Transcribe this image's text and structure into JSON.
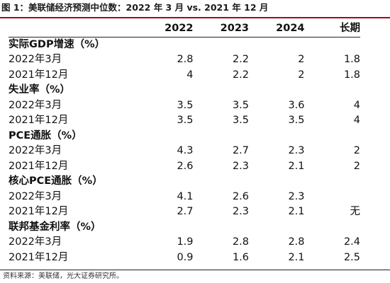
{
  "title": "图 1：美联储经济预测中位数：2022 年 3 月 vs. 2021 年 12 月",
  "columns": [
    "",
    "2022",
    "2023",
    "2024",
    "长期"
  ],
  "sections": [
    {
      "label": "实际GDP增速（%）",
      "rows": [
        {
          "label": "2022年3月",
          "values": [
            "2.8",
            "2.2",
            "2",
            "1.8"
          ]
        },
        {
          "label": "2021年12月",
          "values": [
            "4",
            "2.2",
            "2",
            "1.8"
          ]
        }
      ]
    },
    {
      "label": "失业率（%）",
      "rows": [
        {
          "label": "2022年3月",
          "values": [
            "3.5",
            "3.5",
            "3.6",
            "4"
          ]
        },
        {
          "label": "2021年12月",
          "values": [
            "3.5",
            "3.5",
            "3.5",
            "4"
          ]
        }
      ]
    },
    {
      "label": "PCE通胀（%）",
      "rows": [
        {
          "label": "2022年3月",
          "values": [
            "4.3",
            "2.7",
            "2.3",
            "2"
          ]
        },
        {
          "label": "2021年12月",
          "values": [
            "2.6",
            "2.3",
            "2.1",
            "2"
          ]
        }
      ]
    },
    {
      "label": "核心PCE通胀（%）",
      "rows": [
        {
          "label": "2022年3月",
          "values": [
            "4.1",
            "2.6",
            "2.3",
            ""
          ]
        },
        {
          "label": "2021年12月",
          "values": [
            "2.7",
            "2.3",
            "2.1",
            "无"
          ]
        }
      ]
    },
    {
      "label": "联邦基金利率（%）",
      "rows": [
        {
          "label": "2022年3月",
          "values": [
            "1.9",
            "2.8",
            "2.8",
            "2.4"
          ]
        },
        {
          "label": "2021年12月",
          "values": [
            "0.9",
            "1.6",
            "2.1",
            "2.5"
          ]
        }
      ]
    }
  ],
  "source": "资料来源：美联储，光大证券研究所。"
}
